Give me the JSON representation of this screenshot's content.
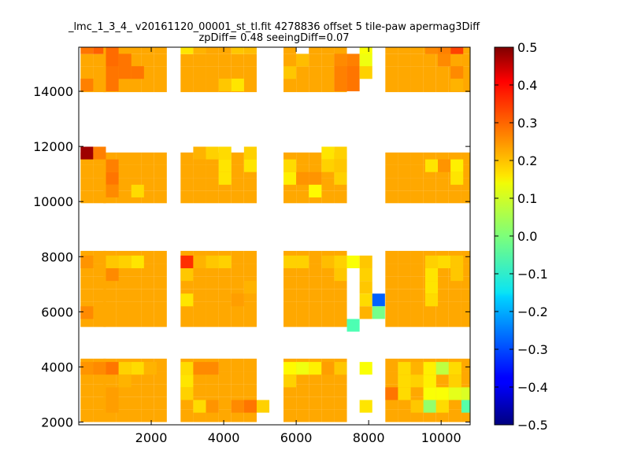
{
  "chart_data": {
    "type": "heatmap",
    "title_lines": [
      "_lmc_1_3_4_ v20161120_00001_st_tl.fit 4278836 offset 5 tile-paw apermag3Diff",
      "zpDiff= 0.48 seeingDiff=0.07"
    ],
    "xlabel": "",
    "ylabel": "",
    "xlim": [
      0,
      10800
    ],
    "ylim": [
      1900,
      15600
    ],
    "x_ticks": [
      2000,
      4000,
      6000,
      8000,
      10000
    ],
    "x_tick_labels": [
      "2000",
      "4000",
      "6000",
      "8000",
      "10000"
    ],
    "y_ticks": [
      2000,
      4000,
      6000,
      8000,
      10000,
      12000,
      14000
    ],
    "y_tick_labels": [
      "2000",
      "4000",
      "6000",
      "8000",
      "10000",
      "12000",
      "14000"
    ],
    "colorbar": {
      "colormap": "jet",
      "vmin": -0.5,
      "vmax": 0.5,
      "ticks": [
        0.5,
        0.4,
        0.3,
        0.2,
        0.1,
        0.0,
        -0.1,
        -0.2,
        -0.3,
        -0.4,
        -0.5
      ],
      "tick_labels": [
        "0.5",
        "0.4",
        "0.3",
        "0.2",
        "0.1",
        "0.0",
        "−0.1",
        "−0.2",
        "−0.3",
        "−0.4",
        "−0.5"
      ]
    },
    "grid": false,
    "cell_size": [
      350,
      460
    ],
    "base_value": 0.21,
    "columns": [
      {
        "x0": 50,
        "cols": 2
      },
      {
        "x0": 680,
        "cols": 5
      },
      {
        "x0": 2810,
        "cols": 6
      },
      {
        "x0": 5650,
        "cols": 5
      },
      {
        "x0": 8460,
        "cols": 1
      },
      {
        "x0": 8810,
        "cols": 6
      }
    ],
    "bands": [
      {
        "y0": 2000,
        "y1": 4270
      },
      {
        "y0": 5450,
        "y1": 7810
      },
      {
        "y0": 9940,
        "y1": 11760
      },
      {
        "y0": 13970,
        "y1": 15580
      }
    ],
    "cells": [
      {
        "x": 50,
        "y": 15350,
        "v": 0.26
      },
      {
        "x": 400,
        "y": 15350,
        "v": 0.28
      },
      {
        "x": 750,
        "y": 15350,
        "v": 0.27
      },
      {
        "x": 750,
        "y": 14900,
        "v": 0.27
      },
      {
        "x": 1100,
        "y": 14900,
        "v": 0.26
      },
      {
        "x": 750,
        "y": 14450,
        "v": 0.26
      },
      {
        "x": 1100,
        "y": 14450,
        "v": 0.26
      },
      {
        "x": 1450,
        "y": 14450,
        "v": 0.26
      },
      {
        "x": 50,
        "y": 14000,
        "v": 0.25
      },
      {
        "x": 750,
        "y": 14000,
        "v": 0.26
      },
      {
        "x": 1100,
        "y": 14000,
        "v": 0.25
      },
      {
        "x": 2810,
        "y": 15350,
        "v": 0.15
      },
      {
        "x": 3160,
        "y": 15350,
        "v": 0.2
      },
      {
        "x": 4210,
        "y": 15350,
        "v": 0.18
      },
      {
        "x": 4560,
        "y": 15350,
        "v": 0.19
      },
      {
        "x": 4210,
        "y": 14000,
        "v": 0.15
      },
      {
        "x": 3860,
        "y": 14000,
        "v": 0.18
      },
      {
        "x": 5650,
        "y": 14450,
        "v": 0.18
      },
      {
        "x": 6000,
        "y": 14900,
        "v": 0.19
      },
      {
        "x": 7050,
        "y": 14900,
        "v": 0.24
      },
      {
        "x": 7400,
        "y": 14900,
        "v": 0.25
      },
      {
        "x": 7050,
        "y": 14450,
        "v": 0.25
      },
      {
        "x": 7400,
        "y": 14450,
        "v": 0.26
      },
      {
        "x": 7050,
        "y": 14000,
        "v": 0.25
      },
      {
        "x": 7400,
        "y": 14000,
        "v": 0.26
      },
      {
        "x": 7750,
        "y": 15350,
        "v": 0.12
      },
      {
        "x": 7750,
        "y": 14900,
        "v": 0.11
      },
      {
        "x": 7750,
        "y": 14450,
        "v": 0.17
      },
      {
        "x": 10260,
        "y": 15350,
        "v": 0.31
      },
      {
        "x": 9910,
        "y": 15350,
        "v": 0.25
      },
      {
        "x": 9560,
        "y": 15350,
        "v": 0.24
      },
      {
        "x": 9910,
        "y": 14900,
        "v": 0.24
      },
      {
        "x": 10260,
        "y": 14450,
        "v": 0.24
      },
      {
        "x": 10260,
        "y": 14000,
        "v": 0.2
      },
      {
        "x": 50,
        "y": 11530,
        "v": 0.47
      },
      {
        "x": 400,
        "y": 11530,
        "v": 0.25
      },
      {
        "x": 750,
        "y": 11070,
        "v": 0.25
      },
      {
        "x": 750,
        "y": 10610,
        "v": 0.26
      },
      {
        "x": 750,
        "y": 10150,
        "v": 0.24
      },
      {
        "x": 1450,
        "y": 10150,
        "v": 0.16
      },
      {
        "x": 3160,
        "y": 11530,
        "v": 0.2
      },
      {
        "x": 3510,
        "y": 11530,
        "v": 0.17
      },
      {
        "x": 3860,
        "y": 11530,
        "v": 0.16
      },
      {
        "x": 3860,
        "y": 11070,
        "v": 0.15
      },
      {
        "x": 3860,
        "y": 10610,
        "v": 0.15
      },
      {
        "x": 4560,
        "y": 11530,
        "v": 0.17
      },
      {
        "x": 4560,
        "y": 11070,
        "v": 0.15
      },
      {
        "x": 5650,
        "y": 11070,
        "v": 0.16
      },
      {
        "x": 5650,
        "y": 10610,
        "v": 0.14
      },
      {
        "x": 6000,
        "y": 10610,
        "v": 0.23
      },
      {
        "x": 6350,
        "y": 10610,
        "v": 0.23
      },
      {
        "x": 6350,
        "y": 10150,
        "v": 0.13
      },
      {
        "x": 6700,
        "y": 11530,
        "v": 0.15
      },
      {
        "x": 6700,
        "y": 11070,
        "v": 0.17
      },
      {
        "x": 7050,
        "y": 11530,
        "v": 0.17
      },
      {
        "x": 7050,
        "y": 11070,
        "v": 0.18
      },
      {
        "x": 7050,
        "y": 10610,
        "v": 0.17
      },
      {
        "x": 9560,
        "y": 11070,
        "v": 0.15
      },
      {
        "x": 9910,
        "y": 11070,
        "v": 0.23
      },
      {
        "x": 10260,
        "y": 11070,
        "v": 0.14
      },
      {
        "x": 10260,
        "y": 10610,
        "v": 0.15
      },
      {
        "x": 50,
        "y": 7580,
        "v": 0.23
      },
      {
        "x": 750,
        "y": 7580,
        "v": 0.18
      },
      {
        "x": 1100,
        "y": 7580,
        "v": 0.17
      },
      {
        "x": 1450,
        "y": 7580,
        "v": 0.15
      },
      {
        "x": 750,
        "y": 7120,
        "v": 0.24
      },
      {
        "x": 2810,
        "y": 7580,
        "v": 0.33
      },
      {
        "x": 3160,
        "y": 7580,
        "v": 0.2
      },
      {
        "x": 3510,
        "y": 7580,
        "v": 0.18
      },
      {
        "x": 3860,
        "y": 7580,
        "v": 0.17
      },
      {
        "x": 2810,
        "y": 7120,
        "v": 0.18
      },
      {
        "x": 2810,
        "y": 6200,
        "v": 0.15
      },
      {
        "x": 4560,
        "y": 6660,
        "v": 0.2
      },
      {
        "x": 4210,
        "y": 6200,
        "v": 0.22
      },
      {
        "x": 5650,
        "y": 7580,
        "v": 0.17
      },
      {
        "x": 6000,
        "y": 7580,
        "v": 0.17
      },
      {
        "x": 6700,
        "y": 7580,
        "v": 0.19
      },
      {
        "x": 7050,
        "y": 7580,
        "v": 0.17
      },
      {
        "x": 7400,
        "y": 7580,
        "v": 0.12
      },
      {
        "x": 7750,
        "y": 7580,
        "v": 0.18
      },
      {
        "x": 7050,
        "y": 7120,
        "v": 0.18
      },
      {
        "x": 7750,
        "y": 7120,
        "v": 0.17
      },
      {
        "x": 7750,
        "y": 6660,
        "v": 0.18
      },
      {
        "x": 7750,
        "y": 6200,
        "v": 0.16
      },
      {
        "x": 7750,
        "y": 5740,
        "v": 0.2
      },
      {
        "x": 8100,
        "y": 6200,
        "v": -0.28
      },
      {
        "x": 8100,
        "y": 5740,
        "v": -0.01
      },
      {
        "x": 7400,
        "y": 5280,
        "v": -0.05
      },
      {
        "x": 50,
        "y": 5740,
        "v": 0.24
      },
      {
        "x": 9560,
        "y": 7580,
        "v": 0.17
      },
      {
        "x": 9910,
        "y": 7580,
        "v": 0.16
      },
      {
        "x": 9560,
        "y": 7120,
        "v": 0.15
      },
      {
        "x": 9560,
        "y": 6660,
        "v": 0.15
      },
      {
        "x": 9560,
        "y": 6200,
        "v": 0.16
      },
      {
        "x": 10260,
        "y": 7580,
        "v": 0.18
      },
      {
        "x": 10260,
        "y": 7120,
        "v": 0.18
      },
      {
        "x": 50,
        "y": 3720,
        "v": 0.23
      },
      {
        "x": 400,
        "y": 3720,
        "v": 0.24
      },
      {
        "x": 750,
        "y": 3720,
        "v": 0.26
      },
      {
        "x": 1100,
        "y": 3720,
        "v": 0.17
      },
      {
        "x": 1450,
        "y": 3720,
        "v": 0.16
      },
      {
        "x": 1800,
        "y": 3720,
        "v": 0.2
      },
      {
        "x": 1100,
        "y": 3260,
        "v": 0.2
      },
      {
        "x": 750,
        "y": 2800,
        "v": 0.22
      },
      {
        "x": 750,
        "y": 2340,
        "v": 0.22
      },
      {
        "x": 2810,
        "y": 3720,
        "v": 0.16
      },
      {
        "x": 2810,
        "y": 3260,
        "v": 0.15
      },
      {
        "x": 2810,
        "y": 2800,
        "v": 0.17
      },
      {
        "x": 3160,
        "y": 3720,
        "v": 0.24
      },
      {
        "x": 3510,
        "y": 3720,
        "v": 0.24
      },
      {
        "x": 3160,
        "y": 2340,
        "v": 0.16
      },
      {
        "x": 3510,
        "y": 2340,
        "v": 0.23
      },
      {
        "x": 4210,
        "y": 2340,
        "v": 0.24
      },
      {
        "x": 4560,
        "y": 2340,
        "v": 0.26
      },
      {
        "x": 4910,
        "y": 2340,
        "v": 0.17
      },
      {
        "x": 5650,
        "y": 3720,
        "v": 0.13
      },
      {
        "x": 6000,
        "y": 3720,
        "v": 0.11
      },
      {
        "x": 6350,
        "y": 3720,
        "v": 0.14
      },
      {
        "x": 6700,
        "y": 3720,
        "v": 0.22
      },
      {
        "x": 7050,
        "y": 3720,
        "v": 0.18
      },
      {
        "x": 7750,
        "y": 3720,
        "v": 0.12
      },
      {
        "x": 5650,
        "y": 3260,
        "v": 0.17
      },
      {
        "x": 7750,
        "y": 2340,
        "v": 0.15
      },
      {
        "x": 8460,
        "y": 2800,
        "v": 0.26
      },
      {
        "x": 8810,
        "y": 3720,
        "v": 0.16
      },
      {
        "x": 9160,
        "y": 3720,
        "v": 0.2
      },
      {
        "x": 9510,
        "y": 3720,
        "v": 0.14
      },
      {
        "x": 9860,
        "y": 3720,
        "v": 0.06
      },
      {
        "x": 10210,
        "y": 3720,
        "v": 0.16
      },
      {
        "x": 8810,
        "y": 3260,
        "v": 0.16
      },
      {
        "x": 9160,
        "y": 3260,
        "v": 0.17
      },
      {
        "x": 9510,
        "y": 3260,
        "v": 0.14
      },
      {
        "x": 8810,
        "y": 2800,
        "v": 0.16
      },
      {
        "x": 9510,
        "y": 2800,
        "v": 0.12
      },
      {
        "x": 9860,
        "y": 2800,
        "v": 0.12
      },
      {
        "x": 10210,
        "y": 2800,
        "v": 0.1
      },
      {
        "x": 10560,
        "y": 2800,
        "v": 0.09
      },
      {
        "x": 9160,
        "y": 2340,
        "v": 0.18
      },
      {
        "x": 9510,
        "y": 2340,
        "v": 0.02
      },
      {
        "x": 9860,
        "y": 2340,
        "v": 0.16
      },
      {
        "x": 10560,
        "y": 2340,
        "v": -0.04
      },
      {
        "x": 10210,
        "y": 3260,
        "v": 0.17
      }
    ],
    "blank_cells": [
      {
        "x": 50,
        "y": 14900
      },
      {
        "x": 400,
        "y": 14900
      },
      {
        "x": 50,
        "y": 14450
      },
      {
        "x": 400,
        "y": 14450
      },
      {
        "x": 400,
        "y": 14000
      },
      {
        "x": 1100,
        "y": 14000
      },
      {
        "x": 3510,
        "y": 14450
      },
      {
        "x": 3160,
        "y": 14900
      },
      {
        "x": 6000,
        "y": 15350
      },
      {
        "x": 50,
        "y": 11070
      },
      {
        "x": 400,
        "y": 11070
      },
      {
        "x": 50,
        "y": 10610
      },
      {
        "x": 400,
        "y": 10610
      },
      {
        "x": 1100,
        "y": 11530
      },
      {
        "x": 3160,
        "y": 10150
      },
      {
        "x": 6700,
        "y": 10150
      },
      {
        "x": 9560,
        "y": 11530
      },
      {
        "x": 50,
        "y": 7120
      },
      {
        "x": 400,
        "y": 7120
      },
      {
        "x": 50,
        "y": 6660
      },
      {
        "x": 400,
        "y": 6660
      },
      {
        "x": 400,
        "y": 7580
      },
      {
        "x": 400,
        "y": 6200
      },
      {
        "x": 750,
        "y": 6200
      },
      {
        "x": 4910,
        "y": 6200
      },
      {
        "x": 5300,
        "y": 5740
      },
      {
        "x": 50,
        "y": 3260
      },
      {
        "x": 400,
        "y": 3260
      },
      {
        "x": 50,
        "y": 2800
      },
      {
        "x": 400,
        "y": 2800
      },
      {
        "x": 50,
        "y": 2340
      },
      {
        "x": 400,
        "y": 2340
      },
      {
        "x": 4910,
        "y": 3260
      },
      {
        "x": 4910,
        "y": 2800
      },
      {
        "x": 3860,
        "y": 2340
      },
      {
        "x": 6350,
        "y": 3260
      },
      {
        "x": 7050,
        "y": 2800
      },
      {
        "x": 10210,
        "y": 2340
      }
    ]
  }
}
